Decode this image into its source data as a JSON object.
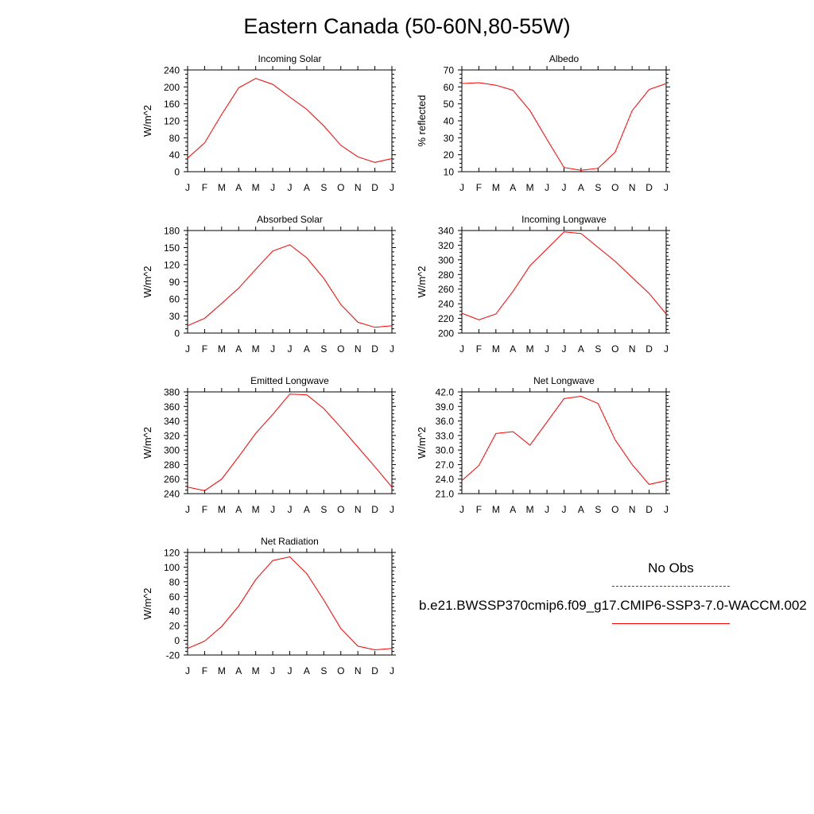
{
  "title": "Eastern Canada (50-60N,80-55W)",
  "legend": {
    "obs_label": "No Obs",
    "obs_color": "#3333ff",
    "model_label": "b.e21.BWSSP370cmip6.f09_g17.CMIP6-SSP3-7.0-WACCM.002",
    "model_color": "#ff0000"
  },
  "chart_data": [
    {
      "type": "line",
      "title": "Incoming Solar",
      "ylabel": "W/m^2",
      "categories": [
        "J",
        "F",
        "M",
        "A",
        "M",
        "J",
        "J",
        "A",
        "S",
        "O",
        "N",
        "D",
        "J"
      ],
      "ylim": [
        0,
        240
      ],
      "yticks": [
        "0",
        "40",
        "80",
        "120",
        "160",
        "200",
        "240"
      ],
      "series": [
        {
          "values": [
            32,
            68,
            135,
            198,
            220,
            206,
            176,
            147,
            108,
            62,
            35,
            22,
            31
          ]
        }
      ]
    },
    {
      "type": "line",
      "title": "Albedo",
      "ylabel": "% reflected",
      "categories": [
        "J",
        "F",
        "M",
        "A",
        "M",
        "J",
        "J",
        "A",
        "S",
        "O",
        "N",
        "D",
        "J"
      ],
      "ylim": [
        10,
        70
      ],
      "yticks": [
        "10",
        "20",
        "30",
        "40",
        "50",
        "60",
        "70"
      ],
      "series": [
        {
          "values": [
            62,
            62.5,
            61,
            58,
            46,
            29,
            12.5,
            10.8,
            12,
            21.5,
            46,
            58.5,
            62
          ]
        }
      ]
    },
    {
      "type": "line",
      "title": "Absorbed Solar",
      "ylabel": "W/m^2",
      "categories": [
        "J",
        "F",
        "M",
        "A",
        "M",
        "J",
        "J",
        "A",
        "S",
        "O",
        "N",
        "D",
        "J"
      ],
      "ylim": [
        0,
        180
      ],
      "yticks": [
        "0",
        "30",
        "60",
        "90",
        "120",
        "150",
        "180"
      ],
      "series": [
        {
          "values": [
            13,
            26,
            52,
            79,
            112,
            144,
            155,
            132,
            96,
            50,
            19,
            10,
            13
          ]
        }
      ]
    },
    {
      "type": "line",
      "title": "Incoming Longwave",
      "ylabel": "W/m^2",
      "categories": [
        "J",
        "F",
        "M",
        "A",
        "M",
        "J",
        "J",
        "A",
        "S",
        "O",
        "N",
        "D",
        "J"
      ],
      "ylim": [
        200,
        340
      ],
      "yticks": [
        "200",
        "220",
        "240",
        "260",
        "280",
        "300",
        "320",
        "340"
      ],
      "series": [
        {
          "values": [
            227,
            218,
            226,
            257,
            292,
            315,
            338,
            336,
            317,
            298,
            276,
            254,
            226
          ]
        }
      ]
    },
    {
      "type": "line",
      "title": "Emitted Longwave",
      "ylabel": "W/m^2",
      "categories": [
        "J",
        "F",
        "M",
        "A",
        "M",
        "J",
        "J",
        "A",
        "S",
        "O",
        "N",
        "D",
        "J"
      ],
      "ylim": [
        240,
        380
      ],
      "yticks": [
        "240",
        "260",
        "280",
        "300",
        "320",
        "340",
        "360",
        "380"
      ],
      "series": [
        {
          "values": [
            249,
            244,
            260,
            291,
            323,
            349,
            377,
            376,
            357,
            331,
            304,
            277,
            249
          ]
        }
      ]
    },
    {
      "type": "line",
      "title": "Net Longwave",
      "ylabel": "W/m^2",
      "categories": [
        "J",
        "F",
        "M",
        "A",
        "M",
        "J",
        "J",
        "A",
        "S",
        "O",
        "N",
        "D",
        "J"
      ],
      "ylim": [
        21,
        42
      ],
      "yticks": [
        "21.0",
        "24.0",
        "27.0",
        "30.0",
        "33.0",
        "36.0",
        "39.0",
        "42.0"
      ],
      "series": [
        {
          "values": [
            23.7,
            26.8,
            33.4,
            33.8,
            31.0,
            35.8,
            40.6,
            41.1,
            39.6,
            32.1,
            27.0,
            22.9,
            23.7
          ]
        }
      ]
    },
    {
      "type": "line",
      "title": "Net Radiation",
      "ylabel": "W/m^2",
      "categories": [
        "J",
        "F",
        "M",
        "A",
        "M",
        "J",
        "J",
        "A",
        "S",
        "O",
        "N",
        "D",
        "J"
      ],
      "ylim": [
        -20,
        120
      ],
      "yticks": [
        "-20",
        "0",
        "20",
        "40",
        "60",
        "80",
        "100",
        "120"
      ],
      "series": [
        {
          "values": [
            -11,
            -1,
            19,
            47,
            83,
            109,
            114,
            91,
            55,
            16,
            -8,
            -13,
            -11
          ]
        }
      ]
    }
  ]
}
